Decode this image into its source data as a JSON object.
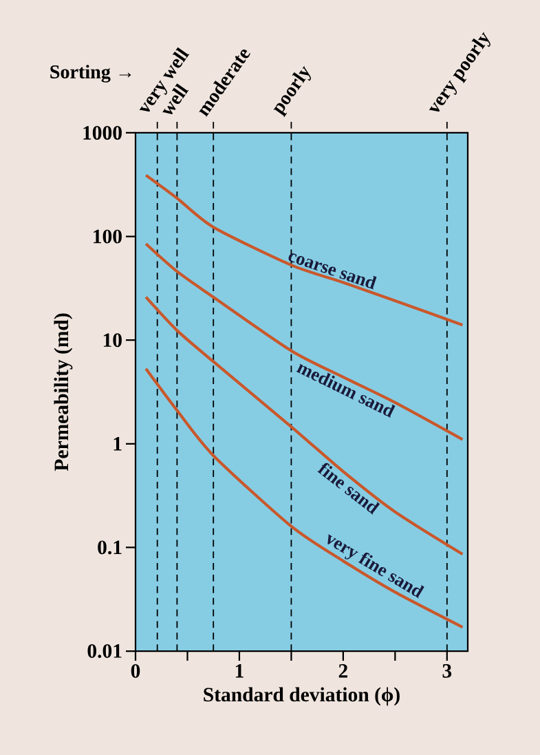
{
  "chart_data": {
    "type": "line",
    "xlabel": "Standard deviation (ϕ)",
    "ylabel": "Permeability (md)",
    "x": [
      0.1,
      0.4,
      0.75,
      1.5,
      2.0,
      2.5,
      3.15
    ],
    "series": [
      {
        "name": "coarse sand",
        "color": "#c9582c",
        "values": [
          390,
          234,
          123,
          53,
          36,
          24,
          14
        ]
      },
      {
        "name": "medium sand",
        "color": "#c9582c",
        "values": [
          85,
          46,
          26,
          7.9,
          4.4,
          2.5,
          1.1
        ]
      },
      {
        "name": "fine sand",
        "color": "#c9582c",
        "values": [
          26,
          12.4,
          6.2,
          1.46,
          0.54,
          0.22,
          0.086
        ]
      },
      {
        "name": "very fine sand",
        "color": "#c9582c",
        "values": [
          5.3,
          2.1,
          0.77,
          0.16,
          0.074,
          0.037,
          0.017
        ]
      }
    ],
    "log": "y",
    "xlim": [
      0,
      3.2
    ],
    "ylim": [
      0.01,
      1000
    ],
    "xticks": [
      0,
      {
        "value": 0.5,
        "label": null
      },
      1,
      {
        "value": 1.5,
        "label": null
      },
      2,
      {
        "value": 2.5,
        "label": null
      },
      3
    ],
    "yticks": [
      0.01,
      0.1,
      1,
      10,
      100,
      1000
    ],
    "ref_lines": [
      {
        "axis": "x",
        "value": 0.21,
        "label": "very well",
        "color": "#000000",
        "line_style": "dashed"
      },
      {
        "axis": "x",
        "value": 0.4,
        "label": "well",
        "color": "#000000",
        "line_style": "dashed"
      },
      {
        "axis": "x",
        "value": 0.75,
        "label": "moderate",
        "color": "#000000",
        "line_style": "dashed"
      },
      {
        "axis": "x",
        "value": 1.5,
        "label": "poorly",
        "color": "#000000",
        "line_style": "dashed"
      },
      {
        "axis": "x",
        "value": 3.0,
        "label": "very poorly",
        "color": "#000000",
        "line_style": "dashed"
      }
    ],
    "annotations": [
      "Sorting →"
    ],
    "grid": false,
    "marker": "none",
    "line_style": "solid"
  }
}
